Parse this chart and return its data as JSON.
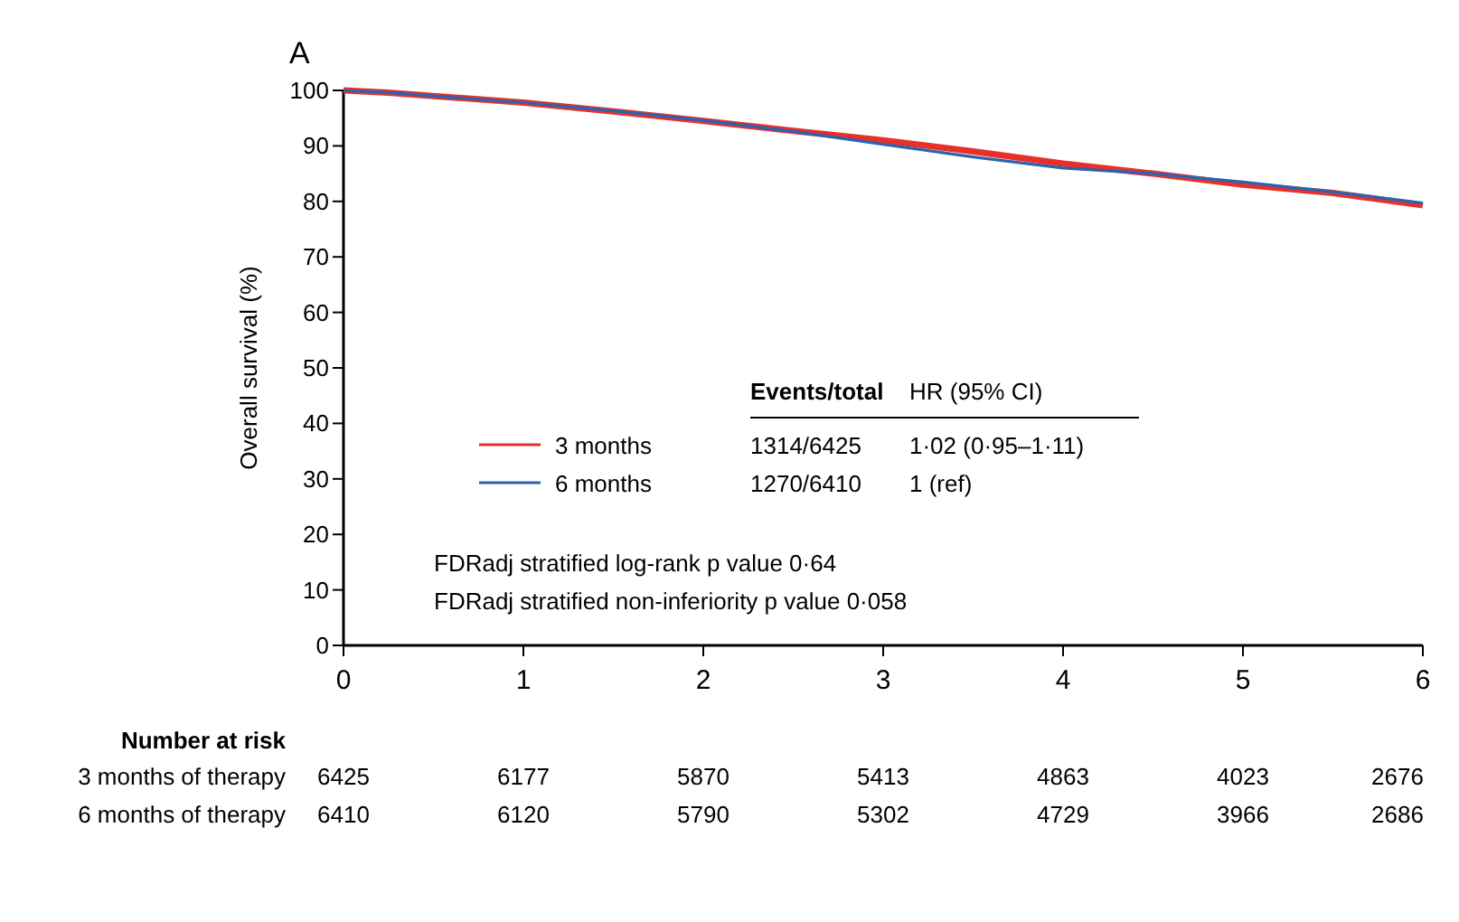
{
  "chart_data": {
    "type": "line",
    "title": "A",
    "ylabel": "Overall survival (%)",
    "x": [
      0,
      0.25,
      0.5,
      1,
      1.5,
      2,
      2.5,
      3,
      3.5,
      4,
      4.5,
      5,
      5.5,
      6
    ],
    "series": [
      {
        "name": "3 months",
        "color": "#e8302a",
        "values": [
          100,
          99.6,
          99,
          97.8,
          96.2,
          94.5,
          92.7,
          91,
          89,
          86.8,
          85,
          83,
          81.5,
          79.3
        ]
      },
      {
        "name": "6 months",
        "color": "#2a63b0",
        "values": [
          100,
          99.6,
          99,
          97.8,
          96.3,
          94.6,
          92.6,
          90.3,
          88,
          86,
          85,
          83.5,
          81.7,
          79.7
        ]
      }
    ],
    "xlim": [
      0,
      6
    ],
    "xticks": [
      0,
      1,
      2,
      3,
      4,
      5,
      6
    ],
    "ylim": [
      0,
      100
    ],
    "yticks": [
      0,
      10,
      20,
      30,
      40,
      50,
      60,
      70,
      80,
      90,
      100
    ],
    "grid": false,
    "legend": "left",
    "marker": "none",
    "line_style": "solid",
    "annotations": [
      "Events/total",
      "HR (95% CI)",
      "1314/6425",
      "1·02 (0·95–1·11)",
      "1270/6410",
      "1 (ref)",
      "FDRadj stratified log-rank p value 0·64",
      "FDRadj stratified non-inferiority p value 0·058",
      "Number at risk",
      "3 months of therapy",
      "6425",
      "6177",
      "5870",
      "5413",
      "4863",
      "4023",
      "2676",
      "6 months of therapy",
      "6410",
      "6120",
      "5790",
      "5302",
      "4729",
      "3966",
      "2686"
    ]
  }
}
